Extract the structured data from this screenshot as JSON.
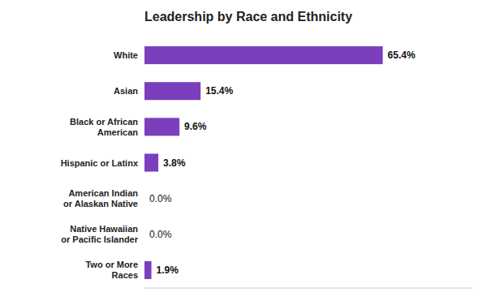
{
  "chart_data": {
    "type": "bar",
    "orientation": "horizontal",
    "title": "Leadership by Race and Ethnicity",
    "categories": [
      "White",
      "Asian",
      "Black or African\nAmerican",
      "Hispanic or Latinx",
      "American Indian\nor Alaskan Native",
      "Native Hawaiian\nor Pacific Islander",
      "Two or More\nRaces"
    ],
    "values": [
      65.4,
      15.4,
      9.6,
      3.8,
      0.0,
      0.0,
      1.9
    ],
    "value_labels": [
      "65.4%",
      "15.4%",
      "9.6%",
      "3.8%",
      "0.0%",
      "0.0%",
      "1.9%"
    ],
    "color": "#7B3FBE",
    "xlim": [
      0,
      90
    ],
    "data_labels": true,
    "tick_labels": "y",
    "grid": false
  }
}
